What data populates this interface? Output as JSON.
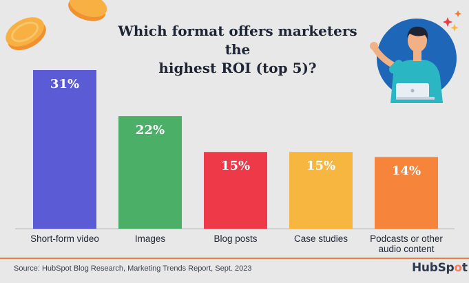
{
  "title": {
    "line1": "Which format offers marketers the",
    "line2": "highest ROI (top 5)?"
  },
  "chart_data": {
    "type": "bar",
    "title": "Which format offers marketers the highest ROI (top 5)?",
    "categories": [
      "Short-form video",
      "Images",
      "Blog posts",
      "Case studies",
      "Podcasts or other audio content"
    ],
    "category_lines": [
      [
        "Short-form video"
      ],
      [
        "Images"
      ],
      [
        "Blog posts"
      ],
      [
        "Case studies"
      ],
      [
        "Podcasts or other",
        "audio content"
      ]
    ],
    "values": [
      31,
      22,
      15,
      15,
      14
    ],
    "labels": [
      "31%",
      "22%",
      "15%",
      "15%",
      "14%"
    ],
    "colors": [
      "#5b5bd6",
      "#4caf68",
      "#ee3a48",
      "#f6b63f",
      "#f6843a"
    ],
    "xlabel": "",
    "ylabel": "",
    "ylim": [
      0,
      31
    ],
    "grid": false,
    "legend": "none"
  },
  "source": "Source: HubSpot Blog Research, Marketing Trends Report, Sept. 2023",
  "brand": {
    "pre": "HubSp",
    "mid": "o",
    "post": "t"
  },
  "icons": {
    "coins": "coin-stack-icon",
    "person": "presenter-with-laptop-illustration",
    "sparkle": "sparkle-icon"
  }
}
